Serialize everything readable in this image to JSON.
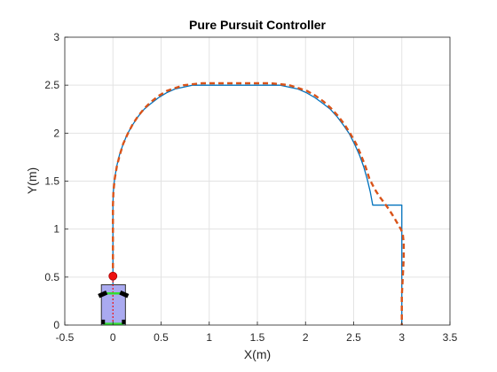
{
  "chart_data": {
    "type": "line",
    "title": "Pure Pursuit Controller",
    "xlabel": "X(m)",
    "ylabel": "Y(m)",
    "xlim": [
      -0.5,
      3.5
    ],
    "ylim": [
      0,
      3
    ],
    "xticks": [
      -0.5,
      0,
      0.5,
      1,
      1.5,
      2,
      2.5,
      3,
      3.5
    ],
    "xtick_labels": [
      "-0.5",
      "0",
      "0.5",
      "1",
      "1.5",
      "2",
      "2.5",
      "3",
      "3.5"
    ],
    "yticks": [
      0,
      0.5,
      1,
      1.5,
      2,
      2.5,
      3
    ],
    "ytick_labels": [
      "0",
      "0.5",
      "1",
      "1.5",
      "2",
      "2.5",
      "3"
    ],
    "grid": true,
    "legend": null,
    "series": [
      {
        "style": "solid",
        "color": "#0072BD",
        "x": [
          0,
          0,
          0.004,
          0.017,
          0.038,
          0.067,
          0.104,
          0.149,
          0.2,
          0.259,
          0.325,
          0.396,
          0.474,
          0.556,
          0.643,
          0.734,
          0.829,
          0.926,
          1.025,
          1.126,
          1.228,
          1.33,
          1.432,
          1.534,
          1.634,
          1.733,
          1.829,
          1.922,
          2.012,
          2.098,
          2.18,
          2.257,
          2.329,
          2.396,
          2.457,
          2.512,
          2.561,
          2.604,
          2.641,
          2.672,
          2.698,
          2.719,
          2.737,
          2.752,
          2.764,
          2.774,
          2.782,
          2.788,
          2.793,
          2.797,
          3.0,
          3.0
        ],
        "y": [
          0,
          1.25,
          1.39,
          1.52,
          1.65,
          1.77,
          1.88,
          1.99,
          2.08,
          2.17,
          2.25,
          2.31,
          2.37,
          2.42,
          2.46,
          2.48,
          2.5,
          2.5,
          2.5,
          2.5,
          2.5,
          2.5,
          2.5,
          2.5,
          2.5,
          2.5,
          2.48,
          2.46,
          2.42,
          2.37,
          2.31,
          2.25,
          2.17,
          2.08,
          1.99,
          1.88,
          1.77,
          1.65,
          1.52,
          1.39,
          1.25,
          1.25,
          1.25,
          1.25,
          1.25,
          1.25,
          1.25,
          1.25,
          1.25,
          1.25,
          1.25,
          0
        ]
      },
      {
        "style": "dashed",
        "color": "#D95319",
        "x": [
          0,
          0,
          0.005,
          0.018,
          0.04,
          0.07,
          0.107,
          0.152,
          0.204,
          0.263,
          0.328,
          0.4,
          0.477,
          0.559,
          0.646,
          0.737,
          0.831,
          0.928,
          1.027,
          1.128,
          1.23,
          1.332,
          1.434,
          1.535,
          1.636,
          1.735,
          1.831,
          1.925,
          2.016,
          2.103,
          2.186,
          2.264,
          2.337,
          2.405,
          2.468,
          2.525,
          2.577,
          2.623,
          2.665,
          2.702,
          2.735,
          2.775,
          2.82,
          2.87,
          2.92,
          2.96,
          2.99,
          3.01,
          3.02,
          3.02,
          3.01,
          3.0,
          3.0
        ],
        "y": [
          0.5,
          1.25,
          1.39,
          1.52,
          1.65,
          1.77,
          1.89,
          1.99,
          2.09,
          2.18,
          2.26,
          2.33,
          2.39,
          2.44,
          2.47,
          2.5,
          2.51,
          2.52,
          2.52,
          2.52,
          2.52,
          2.52,
          2.52,
          2.52,
          2.52,
          2.51,
          2.5,
          2.47,
          2.44,
          2.39,
          2.33,
          2.26,
          2.18,
          2.09,
          1.99,
          1.89,
          1.77,
          1.65,
          1.52,
          1.45,
          1.39,
          1.33,
          1.27,
          1.2,
          1.12,
          1.05,
          1.0,
          0.95,
          0.85,
          0.7,
          0.5,
          0.3,
          0
        ]
      }
    ],
    "robot": {
      "body_x": [
        -0.12,
        0.13
      ],
      "body_y": [
        0,
        0.42
      ],
      "body_color": "#AAAAF0",
      "body_edge": "#333333",
      "front_axle_y": 0.33,
      "rear_axle_y": 0.01,
      "wheel_color": "#000000",
      "axle_color": "#33DD33",
      "lookahead_point": [
        0,
        0.51
      ],
      "lookahead_color": "#EE1111",
      "heading_line_color": "#EE1111"
    }
  }
}
